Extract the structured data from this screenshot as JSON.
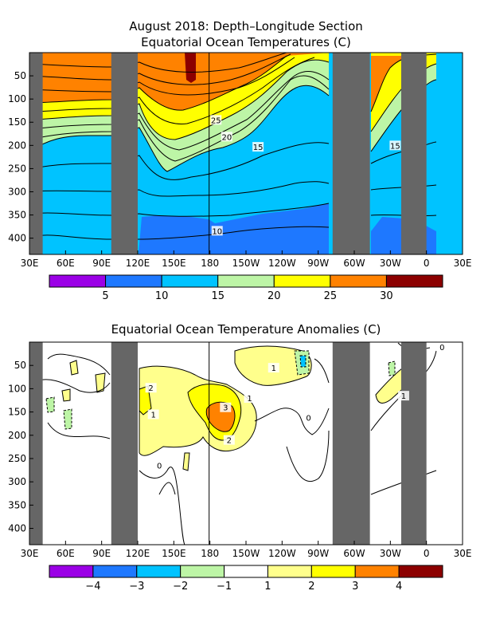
{
  "chart_data": [
    {
      "type": "heatmap",
      "title_lines": [
        "August 2018: Depth–Longitude Section",
        "Equatorial Ocean Temperatures (C)"
      ],
      "xlabel": "",
      "ylabel": "",
      "x_ticks": [
        "30E",
        "60E",
        "90E",
        "120E",
        "150E",
        "180",
        "150W",
        "120W",
        "90W",
        "60W",
        "30W",
        "0",
        "30E"
      ],
      "y_ticks": [
        50,
        100,
        150,
        200,
        250,
        300,
        350,
        400
      ],
      "xlim": [
        30,
        390
      ],
      "ylim_depth": [
        0,
        435
      ],
      "land_longitudes": [
        [
          30,
          41
        ],
        [
          98,
          120
        ],
        [
          282,
          313
        ],
        [
          339,
          360
        ]
      ],
      "contour_labels": [
        {
          "text": "25",
          "lon": 185,
          "depth": 145
        },
        {
          "text": "20",
          "lon": 194,
          "depth": 181
        },
        {
          "text": "15",
          "lon": 220,
          "depth": 203
        },
        {
          "text": "15",
          "lon": 334,
          "depth": 200
        },
        {
          "text": "10",
          "lon": 186,
          "depth": 384
        }
      ],
      "colorbar": {
        "bounds": [
          0,
          5,
          10,
          15,
          20,
          25,
          30,
          35
        ],
        "labels": [
          "5",
          "10",
          "15",
          "20",
          "25",
          "30"
        ],
        "colors": [
          "#9b00e6",
          "#1e78ff",
          "#00c3ff",
          "#bdf5a6",
          "#ffff00",
          "#ff8200",
          "#8c0000"
        ]
      }
    },
    {
      "type": "heatmap",
      "title": "Equatorial Ocean Temperature Anomalies (C)",
      "xlabel": "",
      "ylabel": "",
      "x_ticks": [
        "30E",
        "60E",
        "90E",
        "120E",
        "150E",
        "180",
        "150W",
        "120W",
        "90W",
        "60W",
        "30W",
        "0",
        "30E"
      ],
      "y_ticks": [
        50,
        100,
        150,
        200,
        250,
        300,
        350,
        400
      ],
      "xlim": [
        30,
        390
      ],
      "ylim_depth": [
        0,
        435
      ],
      "land_longitudes": [
        [
          30,
          41
        ],
        [
          98,
          120
        ],
        [
          282,
          313
        ],
        [
          339,
          360
        ]
      ],
      "contour_labels": [
        {
          "text": "1",
          "lon": 233,
          "depth": 55
        },
        {
          "text": "0",
          "lon": 373,
          "depth": 10
        },
        {
          "text": "2",
          "lon": 131,
          "depth": 98
        },
        {
          "text": "1",
          "lon": 133,
          "depth": 155
        },
        {
          "text": "3",
          "lon": 193,
          "depth": 140
        },
        {
          "text": "1",
          "lon": 213,
          "depth": 120
        },
        {
          "text": "2",
          "lon": 196,
          "depth": 210
        },
        {
          "text": "0",
          "lon": 138,
          "depth": 265
        },
        {
          "text": "0",
          "lon": 262,
          "depth": 162
        },
        {
          "text": "1",
          "lon": 341,
          "depth": 115
        }
      ],
      "colorbar": {
        "bounds": [
          -5,
          -4,
          -3,
          -2,
          -1,
          1,
          2,
          3,
          4,
          5
        ],
        "labels": [
          "−4",
          "−3",
          "−2",
          "−1",
          "1",
          "2",
          "3",
          "4"
        ],
        "colors": [
          "#9b00e6",
          "#1e78ff",
          "#00c3ff",
          "#bdf5a6",
          "#ffffff",
          "#ffff8c",
          "#ffff00",
          "#ff8200",
          "#8c0000"
        ]
      }
    }
  ]
}
